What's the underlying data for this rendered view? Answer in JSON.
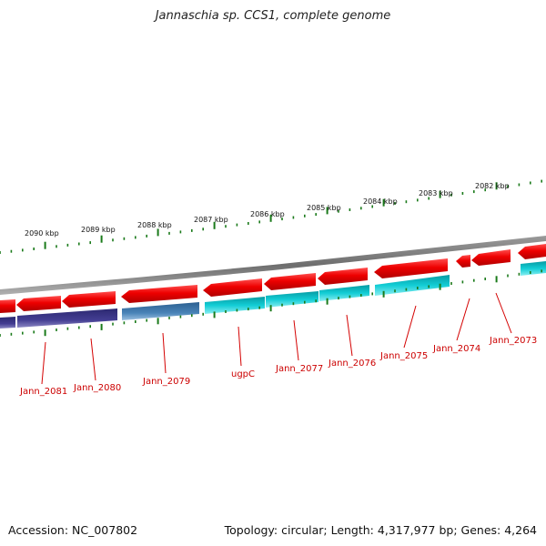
{
  "title": "Jannaschia sp. CCS1, complete genome",
  "footer": {
    "accession": "Accession: NC_007802",
    "topology": "Topology: circular; Length: 4,317,977 bp; Genes: 4,264"
  },
  "colors": {
    "forward_gene": "#e80000",
    "reverse_cds_cyan": "#10c8d0",
    "reverse_cds_purple": "#3b3585",
    "reverse_cds_steel": "#3a73a8",
    "backbone": "#7a7a7a",
    "tick": "#1a7a1a",
    "gene_label": "#cc0000"
  },
  "scale_labels": [
    "2090 kbp",
    "2089 kbp",
    "2088 kbp",
    "2087 kbp",
    "2086 kbp",
    "2085 kbp",
    "2084 kbp",
    "2083 kbp",
    "2082 kbp"
  ],
  "gene_labels": [
    "Jann_2081",
    "Jann_2080",
    "Jann_2079",
    "ugpC",
    "Jann_2077",
    "Jann_2076",
    "Jann_2075",
    "Jann_2074",
    "Jann_2073"
  ]
}
